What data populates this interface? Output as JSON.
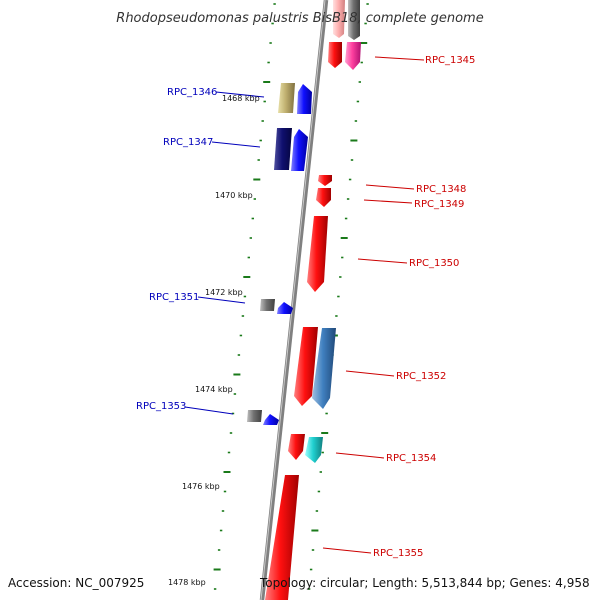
{
  "title": "Rhodopseudomonas palustris BisB18, complete genome",
  "footer": {
    "accession": "Accession: NC_007925",
    "topology": "Topology: circular; Length: 5,513,844 bp; Genes: 4,958"
  },
  "kbp_labels": [
    "1468 kbp",
    "1470 kbp",
    "1472 kbp",
    "1474 kbp",
    "1476 kbp",
    "1478 kbp"
  ],
  "genes": [
    {
      "name": "RPC_1345",
      "strand": "reverse",
      "color": "#ff0000"
    },
    {
      "name": "RPC_1346",
      "strand": "forward",
      "color": "#0000ff"
    },
    {
      "name": "RPC_1347",
      "strand": "forward",
      "color": "#0000ff"
    },
    {
      "name": "RPC_1348",
      "strand": "reverse",
      "color": "#ff0000"
    },
    {
      "name": "RPC_1349",
      "strand": "reverse",
      "color": "#ff0000"
    },
    {
      "name": "RPC_1350",
      "strand": "reverse",
      "color": "#ff0000"
    },
    {
      "name": "RPC_1351",
      "strand": "forward",
      "color": "#0000ff"
    },
    {
      "name": "RPC_1352",
      "strand": "reverse",
      "color": "#ff0000"
    },
    {
      "name": "RPC_1353",
      "strand": "forward",
      "color": "#0000ff"
    },
    {
      "name": "RPC_1354",
      "strand": "reverse",
      "color": "#ff0000"
    },
    {
      "name": "RPC_1355",
      "strand": "reverse",
      "color": "#ff0000"
    }
  ],
  "colors": {
    "backbone": "#808080",
    "tick": "#1a7a1a",
    "forward_label": "#0000bb",
    "reverse_label": "#cc0000"
  }
}
